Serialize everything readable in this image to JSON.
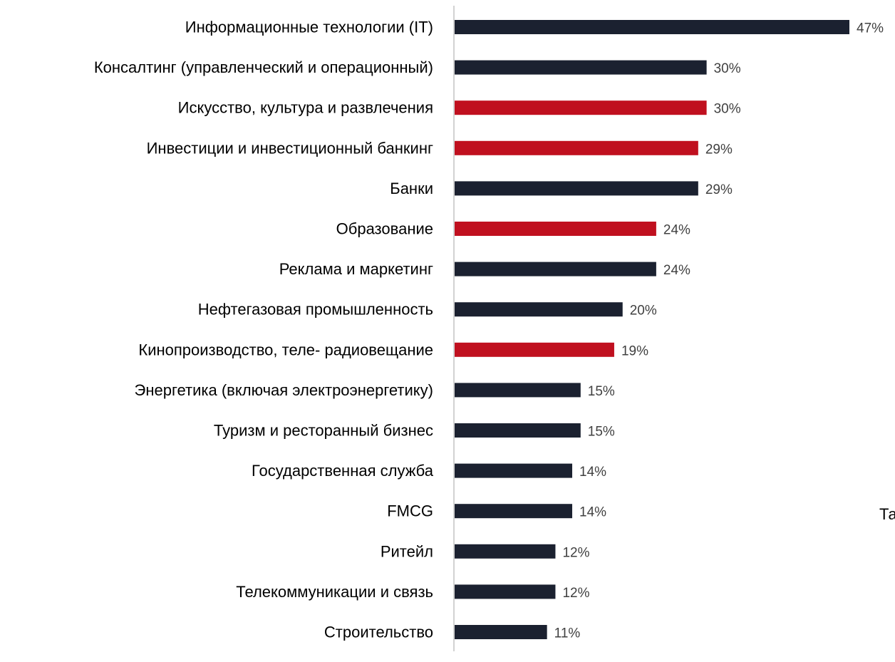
{
  "chart_data": {
    "type": "bar",
    "orientation": "horizontal",
    "categories": [
      "Информационные технологии (IT)",
      "Консалтинг (управленческий и операционный)",
      "Искусство, культура и развлечения",
      "Инвестиции и инвестиционный банкинг",
      "Банки",
      "Образование",
      "Реклама и маркетинг",
      "Нефтегазовая промышленность",
      "Кинопроизводство, теле- радиовещание",
      "Энергетика (включая электроэнергетику)",
      "Туризм и ресторанный бизнес",
      "Государственная служба",
      "FMCG",
      "Ритейл",
      "Телекоммуникации и связь",
      "Строительство"
    ],
    "values": [
      47,
      30,
      30,
      29,
      29,
      24,
      24,
      20,
      19,
      15,
      15,
      14,
      14,
      12,
      12,
      11
    ],
    "data_labels": [
      "47%",
      "30%",
      "30%",
      "29%",
      "29%",
      "24%",
      "24%",
      "20%",
      "19%",
      "15%",
      "15%",
      "14%",
      "14%",
      "12%",
      "12%",
      "11%"
    ],
    "highlighted": [
      false,
      false,
      true,
      true,
      false,
      true,
      false,
      false,
      true,
      false,
      false,
      false,
      false,
      false,
      false,
      false
    ],
    "title": "",
    "xlabel": "",
    "ylabel": "",
    "xlim": [
      0,
      47
    ],
    "grid": false,
    "legend": "none"
  },
  "colors": {
    "default_bar": "#1b2130",
    "highlight_bar": "#c0101f",
    "axis_line": "#c4c4c4",
    "category_text": "#000000",
    "value_text": "#404040"
  },
  "stray_text": "Та"
}
